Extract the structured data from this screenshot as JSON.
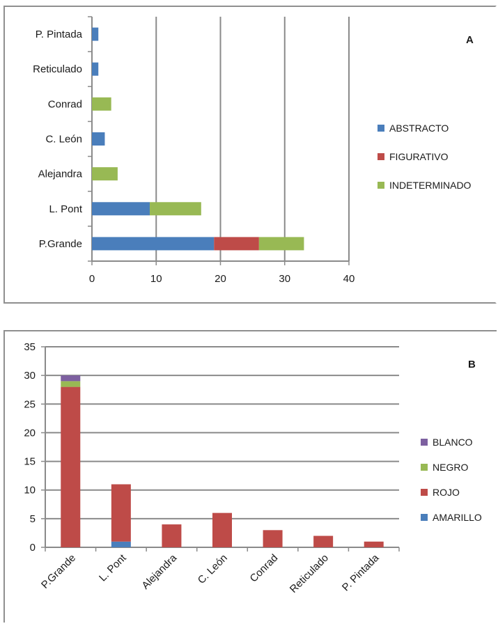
{
  "chart_data": [
    {
      "type": "bar",
      "orientation": "horizontal",
      "stacked": true,
      "panel_label": "A",
      "categories": [
        "P.Grande",
        "L. Pont",
        "Alejandra",
        "C. León",
        "Conrad",
        "Reticulado",
        "P. Pintada"
      ],
      "series": [
        {
          "name": "ABSTRACTO",
          "color": "#4a7ebb",
          "values": [
            19,
            9,
            0,
            2,
            0,
            1,
            1
          ]
        },
        {
          "name": "FIGURATIVO",
          "color": "#be4b48",
          "values": [
            7,
            0,
            0,
            0,
            0,
            0,
            0
          ]
        },
        {
          "name": "INDETERMINADO",
          "color": "#98b954",
          "values": [
            7,
            8,
            4,
            0,
            3,
            0,
            0
          ]
        }
      ],
      "xlim": [
        0,
        40
      ],
      "xticks": [
        0,
        10,
        20,
        30,
        40
      ],
      "grid": "vertical",
      "legend_position": "right"
    },
    {
      "type": "bar",
      "orientation": "vertical",
      "stacked": true,
      "panel_label": "B",
      "categories": [
        "P.Grande",
        "L. Pont",
        "Alejandra",
        "C. León",
        "Conrad",
        "Reticulado",
        "P. Pintada"
      ],
      "series": [
        {
          "name": "AMARILLO",
          "color": "#4a7ebb",
          "values": [
            0,
            1,
            0,
            0,
            0,
            0,
            0
          ]
        },
        {
          "name": "ROJO",
          "color": "#be4b48",
          "values": [
            28,
            10,
            4,
            6,
            3,
            2,
            1
          ]
        },
        {
          "name": "NEGRO",
          "color": "#98b954",
          "values": [
            1,
            0,
            0,
            0,
            0,
            0,
            0
          ]
        },
        {
          "name": "BLANCO",
          "color": "#7d60a0",
          "values": [
            1,
            0,
            0,
            0,
            0,
            0,
            0
          ]
        }
      ],
      "ylim": [
        0,
        35
      ],
      "yticks": [
        0,
        5,
        10,
        15,
        20,
        25,
        30,
        35
      ],
      "grid": "horizontal",
      "legend_position": "right",
      "legend_order": [
        "BLANCO",
        "NEGRO",
        "ROJO",
        "AMARILLO"
      ]
    }
  ]
}
